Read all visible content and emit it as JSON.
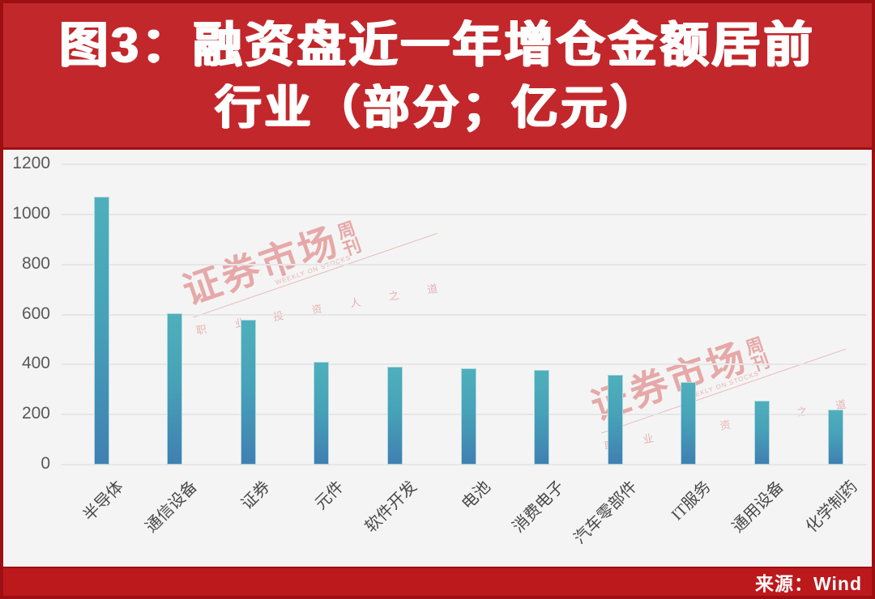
{
  "header": {
    "title_line1": "图3：融资盘近一年增仓金额居前",
    "title_line2": "行业（部分；亿元）"
  },
  "footer": {
    "source_label": "来源：Wind"
  },
  "watermark": {
    "main": "证券市场",
    "sub_top": "周",
    "sub_bottom": "刊",
    "tagline": "职 业 投 资 人 之 道",
    "tagline_en": "WEEKLY ON STOCKS"
  },
  "colors": {
    "header_bg": "#C2272B",
    "footer_bg": "#BC191D",
    "frame_border": "#9C0F12",
    "chart_bg": "#F5F4F4",
    "gridline": "#E7E6E6",
    "bar_top": "#4FAFBB",
    "bar_bottom": "#4080B2",
    "watermark_pink": "#DD7B7B"
  },
  "chart_data": {
    "type": "bar",
    "title": "图3：融资盘近一年增仓金额居前行业（部分；亿元）",
    "xlabel": "",
    "ylabel": "亿元",
    "categories": [
      "半导体",
      "通信设备",
      "证券",
      "元件",
      "软件开发",
      "电池",
      "消费电子",
      "汽车零部件",
      "IT服务",
      "通用设备",
      "化学制药"
    ],
    "values": [
      1070,
      605,
      580,
      410,
      390,
      385,
      380,
      360,
      330,
      255,
      220
    ],
    "ylim": [
      0,
      1200
    ],
    "yticks": [
      0,
      200,
      400,
      600,
      800,
      1000,
      1200
    ],
    "grid": true,
    "legend": false,
    "source": "Wind"
  }
}
